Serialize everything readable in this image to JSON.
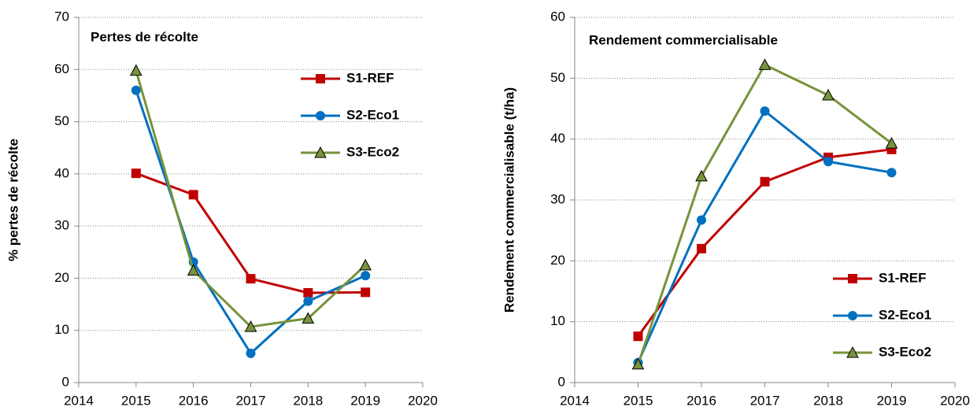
{
  "chart_data": [
    {
      "type": "line",
      "title": "Pertes de récolte",
      "y_label": "% pertes de récolte",
      "x": [
        2015,
        2016,
        2017,
        2018,
        2019
      ],
      "xlim": [
        2014,
        2020
      ],
      "xticks": [
        2014,
        2015,
        2016,
        2017,
        2018,
        2019,
        2020
      ],
      "ylim": [
        0,
        70
      ],
      "yticks": [
        0,
        10,
        20,
        30,
        40,
        50,
        60,
        70
      ],
      "grid": true,
      "legend": "upper right",
      "series": [
        {
          "name": "S1-REF",
          "color": "#c00000",
          "marker": "square",
          "values": [
            40.1,
            36,
            19.9,
            17.2,
            17.3
          ]
        },
        {
          "name": "S2-Eco1",
          "color": "#0070c0",
          "marker": "circle",
          "values": [
            56,
            23.1,
            5.6,
            15.6,
            20.5
          ]
        },
        {
          "name": "S3-Eco2",
          "color": "#77933c",
          "marker": "triangle",
          "values": [
            59.8,
            21.5,
            10.7,
            12.3,
            22.5
          ]
        }
      ]
    },
    {
      "type": "line",
      "title": "Rendement commercialisable",
      "y_label": "Rendement commercialisable (t/ha)",
      "x": [
        2015,
        2016,
        2017,
        2018,
        2019
      ],
      "xlim": [
        2014,
        2020
      ],
      "xticks": [
        2014,
        2015,
        2016,
        2017,
        2018,
        2019,
        2020
      ],
      "ylim": [
        0,
        60
      ],
      "yticks": [
        0,
        10,
        20,
        30,
        40,
        50,
        60
      ],
      "grid": true,
      "legend": "lower right",
      "series": [
        {
          "name": "S1-REF",
          "color": "#c00000",
          "marker": "square",
          "values": [
            7.6,
            22,
            33,
            37,
            38.3
          ]
        },
        {
          "name": "S2-Eco1",
          "color": "#0070c0",
          "marker": "circle",
          "values": [
            3.3,
            26.7,
            44.6,
            36.3,
            34.5
          ]
        },
        {
          "name": "S3-Eco2",
          "color": "#77933c",
          "marker": "triangle",
          "values": [
            3,
            33.9,
            52.2,
            47.2,
            39.3
          ]
        }
      ]
    }
  ]
}
